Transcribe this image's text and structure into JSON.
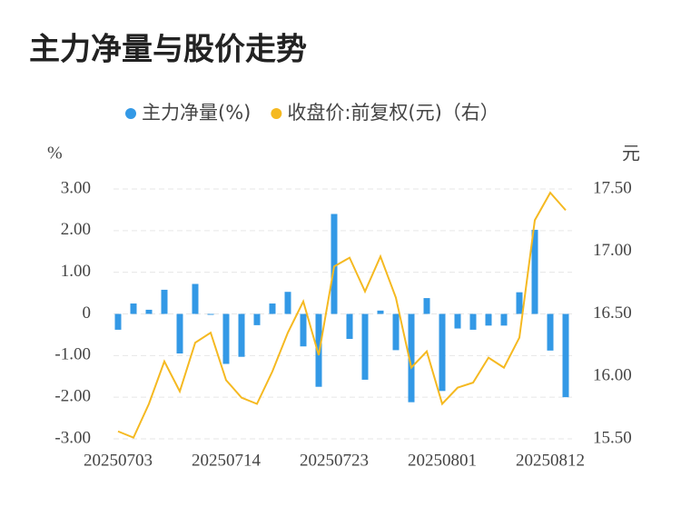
{
  "chart_data": {
    "type": "bar_line",
    "title": "主力净量与股价走势",
    "y_label": "%",
    "y2_label": "元",
    "categories": [
      "20250703",
      null,
      null,
      null,
      null,
      null,
      null,
      "20250714",
      null,
      null,
      null,
      null,
      null,
      null,
      "20250723",
      null,
      null,
      null,
      null,
      null,
      null,
      "20250801",
      null,
      null,
      null,
      null,
      null,
      null,
      "20250812",
      null
    ],
    "series": [
      {
        "name": "主力净量(%)",
        "color": "#3399e6",
        "type": "bar",
        "axis": "y",
        "values": [
          -0.38,
          0.25,
          0.1,
          0.58,
          -0.95,
          0.72,
          -0.02,
          -1.2,
          -1.03,
          -0.27,
          0.25,
          0.53,
          -0.78,
          -1.75,
          2.4,
          -0.6,
          -1.58,
          0.08,
          -0.87,
          -2.12,
          0.38,
          -1.85,
          -0.35,
          -0.38,
          -0.28,
          -0.28,
          0.52,
          2.02,
          -0.88,
          -2.0
        ]
      },
      {
        "name": "收盘价:前复权(元)（右）",
        "color": "#f5b921",
        "type": "line",
        "axis": "y2",
        "values": [
          15.56,
          15.51,
          15.78,
          16.12,
          15.88,
          16.27,
          16.35,
          15.97,
          15.83,
          15.78,
          16.04,
          16.35,
          16.6,
          16.17,
          16.88,
          16.95,
          16.68,
          16.96,
          16.63,
          16.07,
          16.2,
          15.78,
          15.91,
          15.95,
          16.15,
          16.07,
          16.31,
          17.25,
          17.47,
          17.33
        ]
      }
    ],
    "ylim": [
      -3,
      3
    ],
    "yticks": [
      {
        "value": 3,
        "label": "3.00"
      },
      {
        "value": 2,
        "label": "2.00"
      },
      {
        "value": 1,
        "label": "1.00"
      },
      0,
      {
        "value": -1,
        "label": "-1.00"
      },
      {
        "value": -2,
        "label": "-2.00"
      },
      {
        "value": -3,
        "label": "-3.00"
      }
    ],
    "y2lim": [
      15.5,
      17.5
    ],
    "y2ticks": [
      {
        "value": 17.5,
        "label": "17.50"
      },
      {
        "value": 17,
        "label": "17.00"
      },
      {
        "value": 16.5,
        "label": "16.50"
      },
      {
        "value": 16,
        "label": "16.00"
      },
      {
        "value": 15.5,
        "label": "15.50"
      }
    ],
    "grid": true
  }
}
